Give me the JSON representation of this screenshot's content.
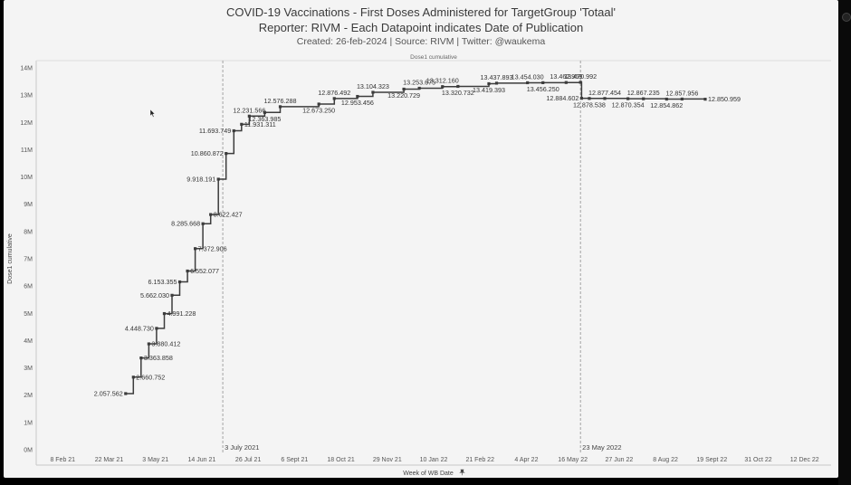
{
  "header": {
    "title": "COVID-19 Vaccinations - First Doses Administered for TargetGroup 'Totaal'",
    "subtitle": "Reporter: RIVM - Each Datapoint indicates Date of Publication",
    "created": "Created: 26-feb-2024 | Source: RIVM | Twitter: @waukema"
  },
  "icons": {
    "cursor": "mouse-pointer-icon",
    "pin": "pin-icon"
  },
  "colors": {
    "line": "#3c3c3c",
    "background": "#f4f4f4",
    "reference_line": "#999999"
  },
  "chart_data": {
    "type": "line",
    "step": true,
    "header_label": "Dose1 cumulative",
    "ylabel": "Dose1 cumulative",
    "xlabel": "Week of WB Date",
    "ylim": [
      0,
      14000000
    ],
    "yticks": [
      0,
      1000000,
      2000000,
      3000000,
      4000000,
      5000000,
      6000000,
      7000000,
      8000000,
      9000000,
      10000000,
      11000000,
      12000000,
      13000000,
      14000000
    ],
    "ytick_labels": [
      "0M",
      "1M",
      "2M",
      "3M",
      "4M",
      "5M",
      "6M",
      "7M",
      "8M",
      "9M",
      "10M",
      "11M",
      "12M",
      "13M",
      "14M"
    ],
    "xlim": [
      "2021-01-15",
      "2023-01-05"
    ],
    "xticks": [
      "2021-02-08",
      "2021-03-22",
      "2021-05-03",
      "2021-06-14",
      "2021-07-26",
      "2021-09-06",
      "2021-10-18",
      "2021-11-29",
      "2022-01-10",
      "2022-02-21",
      "2022-04-04",
      "2022-05-16",
      "2022-06-27",
      "2022-08-08",
      "2022-09-19",
      "2022-10-31",
      "2022-12-12"
    ],
    "xtick_labels": [
      "8 Feb 21",
      "22 Mar 21",
      "3 May 21",
      "14 Jun 21",
      "26 Jul 21",
      "6 Sept 21",
      "18 Oct 21",
      "29 Nov 21",
      "10 Jan 22",
      "21 Feb 22",
      "4 Apr 22",
      "16 May 22",
      "27 Jun 22",
      "8 Aug 22",
      "19 Sept 22",
      "31 Oct 22",
      "12 Dec 22"
    ],
    "reference_lines": [
      {
        "date": "2021-07-03",
        "label": "3 July 2021"
      },
      {
        "date": "2022-05-23",
        "label": "23 May 2022"
      }
    ],
    "points": [
      {
        "x": "2021-04-06",
        "y": 2057562,
        "label": "2.057.562"
      },
      {
        "x": "2021-04-13",
        "y": 2660752,
        "label": "2.660.752"
      },
      {
        "x": "2021-04-20",
        "y": 3363858,
        "label": "3.363.858"
      },
      {
        "x": "2021-04-27",
        "y": 3880412,
        "label": "3.880.412"
      },
      {
        "x": "2021-05-04",
        "y": 4448730,
        "label": "4.448.730"
      },
      {
        "x": "2021-05-11",
        "y": 4991228,
        "label": "4.991.228"
      },
      {
        "x": "2021-05-18",
        "y": 5662030,
        "label": "5.662.030"
      },
      {
        "x": "2021-05-25",
        "y": 6153355,
        "label": "6.153.355"
      },
      {
        "x": "2021-06-01",
        "y": 6552077,
        "label": "6.552.077"
      },
      {
        "x": "2021-06-08",
        "y": 7372906,
        "label": "7.372.906"
      },
      {
        "x": "2021-06-15",
        "y": 8285668,
        "label": "8.285.668"
      },
      {
        "x": "2021-06-22",
        "y": 8622427,
        "label": "8.622.427"
      },
      {
        "x": "2021-06-29",
        "y": 9918191,
        "label": "9.918.191"
      },
      {
        "x": "2021-07-06",
        "y": 10860872,
        "label": "10.860.872"
      },
      {
        "x": "2021-07-13",
        "y": 11693749,
        "label": "11.693.749"
      },
      {
        "x": "2021-07-20",
        "y": 11931311,
        "label": "11.931.311"
      },
      {
        "x": "2021-07-27",
        "y": 12231566,
        "label": "12.231.566"
      },
      {
        "x": "2021-08-10",
        "y": 12363985,
        "label": "12.363.985"
      },
      {
        "x": "2021-08-24",
        "y": 12576288,
        "label": "12.576.288"
      },
      {
        "x": "2021-09-28",
        "y": 12673250,
        "label": "12.673.250"
      },
      {
        "x": "2021-10-12",
        "y": 12876492,
        "label": "12.876.492"
      },
      {
        "x": "2021-11-02",
        "y": 12953456,
        "label": "12.953.456"
      },
      {
        "x": "2021-11-16",
        "y": 13104323,
        "label": "13.104.323"
      },
      {
        "x": "2021-12-14",
        "y": 13220729,
        "label": "13.220.729"
      },
      {
        "x": "2021-12-28",
        "y": 13253675,
        "label": "13.253.675"
      },
      {
        "x": "2022-01-18",
        "y": 13312160,
        "label": "13.312.160"
      },
      {
        "x": "2022-02-01",
        "y": 13320732,
        "label": "13.320.732"
      },
      {
        "x": "2022-03-01",
        "y": 13419393,
        "label": "13.419.393"
      },
      {
        "x": "2022-03-08",
        "y": 13437893,
        "label": "13.437.893"
      },
      {
        "x": "2022-04-05",
        "y": 13454030,
        "label": "13.454.030"
      },
      {
        "x": "2022-04-19",
        "y": 13456250,
        "label": "13.456.250"
      },
      {
        "x": "2022-05-10",
        "y": 13462969,
        "label": "13.462.969"
      },
      {
        "x": "2022-05-23",
        "y": 13470992,
        "label": "13.470.992"
      },
      {
        "x": "2022-05-24",
        "y": 12884602,
        "label": "12.884.602"
      },
      {
        "x": "2022-05-31",
        "y": 12878538,
        "label": "12.878.538"
      },
      {
        "x": "2022-06-14",
        "y": 12877454,
        "label": "12.877.454"
      },
      {
        "x": "2022-07-05",
        "y": 12870354,
        "label": "12.870.354"
      },
      {
        "x": "2022-07-19",
        "y": 12867235,
        "label": "12.867.235"
      },
      {
        "x": "2022-08-09",
        "y": 12854862,
        "label": "12.854.862"
      },
      {
        "x": "2022-08-23",
        "y": 12857956,
        "label": "12.857.956"
      },
      {
        "x": "2022-09-13",
        "y": 12850959,
        "label": "12.850.959"
      }
    ]
  }
}
